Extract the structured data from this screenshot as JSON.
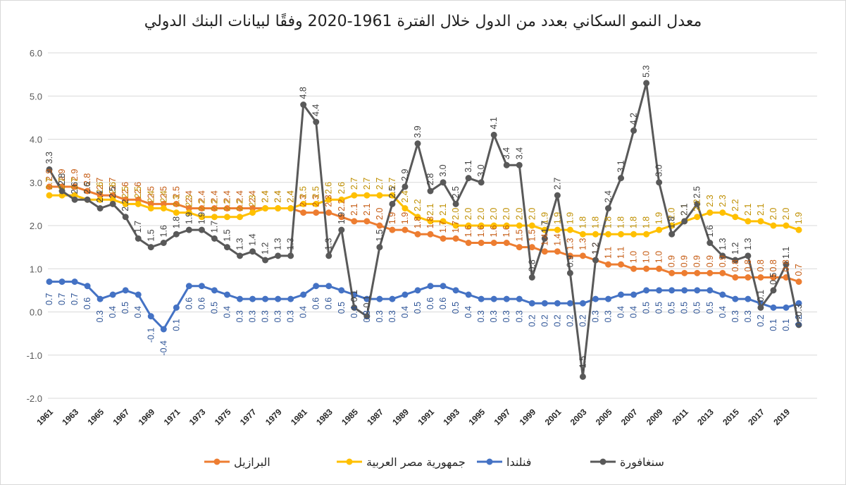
{
  "chart_data": {
    "type": "line",
    "title": "معدل النمو السكاني بعدد من الدول خلال الفترة 1961-2020 وفقًا لبيانات البنك الدولي",
    "xlabel": "",
    "ylabel": "",
    "ylim": [
      -2.0,
      6.0
    ],
    "y_ticks": [
      "-2.0",
      "-1.0",
      "0.0",
      "1.0",
      "2.0",
      "3.0",
      "4.0",
      "5.0",
      "6.0"
    ],
    "x": [
      1961,
      1962,
      1963,
      1964,
      1965,
      1966,
      1967,
      1968,
      1969,
      1970,
      1971,
      1972,
      1973,
      1974,
      1975,
      1976,
      1977,
      1978,
      1979,
      1980,
      1981,
      1982,
      1983,
      1984,
      1985,
      1986,
      1987,
      1988,
      1989,
      1990,
      1991,
      1992,
      1993,
      1994,
      1995,
      1996,
      1997,
      1998,
      1999,
      2000,
      2001,
      2002,
      2003,
      2004,
      2005,
      2006,
      2007,
      2008,
      2009,
      2010,
      2011,
      2012,
      2013,
      2014,
      2015,
      2016,
      2017,
      2018,
      2019,
      2020
    ],
    "x_tick_labels": [
      "1961",
      "1963",
      "1965",
      "1967",
      "1969",
      "1971",
      "1973",
      "1975",
      "1977",
      "1979",
      "1981",
      "1983",
      "1985",
      "1987",
      "1989",
      "1991",
      "1993",
      "1995",
      "1997",
      "1999",
      "2001",
      "2003",
      "2005",
      "2007",
      "2009",
      "2011",
      "2013",
      "2015",
      "2017",
      "2019"
    ],
    "grid": true,
    "legend_position": "bottom",
    "series": [
      {
        "name": "البرازيل",
        "color": "#ED7D31",
        "values": [
          2.9,
          2.9,
          2.9,
          2.8,
          2.7,
          2.7,
          2.6,
          2.6,
          2.5,
          2.5,
          2.5,
          2.4,
          2.4,
          2.4,
          2.4,
          2.4,
          2.4,
          2.4,
          2.4,
          2.4,
          2.3,
          2.3,
          2.3,
          2.2,
          2.1,
          2.1,
          2.0,
          1.9,
          1.9,
          1.8,
          1.8,
          1.7,
          1.7,
          1.6,
          1.6,
          1.6,
          1.6,
          1.5,
          1.5,
          1.4,
          1.4,
          1.3,
          1.3,
          1.2,
          1.1,
          1.1,
          1.0,
          1.0,
          1.0,
          0.9,
          0.9,
          0.9,
          0.9,
          0.9,
          0.8,
          0.8,
          0.8,
          0.8,
          0.8,
          0.7
        ]
      },
      {
        "name": "جمهورية مصر العربية",
        "color": "#FFC000",
        "values": [
          2.7,
          2.7,
          2.7,
          2.6,
          2.6,
          2.6,
          2.5,
          2.5,
          2.4,
          2.4,
          2.3,
          2.3,
          2.2,
          2.2,
          2.2,
          2.2,
          2.3,
          2.4,
          2.4,
          2.4,
          2.5,
          2.5,
          2.6,
          2.6,
          2.7,
          2.7,
          2.7,
          2.7,
          2.4,
          2.2,
          2.1,
          2.1,
          2.0,
          2.0,
          2.0,
          2.0,
          2.0,
          2.0,
          2.0,
          1.9,
          1.9,
          1.9,
          1.8,
          1.8,
          1.8,
          1.8,
          1.8,
          1.8,
          1.9,
          2.0,
          2.1,
          2.2,
          2.3,
          2.3,
          2.2,
          2.1,
          2.1,
          2.0,
          2.0,
          1.9
        ]
      },
      {
        "name": "فنلندا",
        "color": "#4472C4",
        "values": [
          0.7,
          0.7,
          0.7,
          0.6,
          0.3,
          0.4,
          0.5,
          0.4,
          -0.1,
          -0.4,
          0.1,
          0.6,
          0.6,
          0.5,
          0.4,
          0.3,
          0.3,
          0.3,
          0.3,
          0.3,
          0.4,
          0.6,
          0.6,
          0.5,
          0.4,
          0.3,
          0.3,
          0.3,
          0.4,
          0.5,
          0.6,
          0.6,
          0.5,
          0.4,
          0.3,
          0.3,
          0.3,
          0.3,
          0.2,
          0.2,
          0.2,
          0.2,
          0.2,
          0.3,
          0.3,
          0.4,
          0.4,
          0.5,
          0.5,
          0.5,
          0.5,
          0.5,
          0.5,
          0.4,
          0.3,
          0.3,
          0.2,
          0.1,
          0.1,
          0.2
        ]
      },
      {
        "name": "سنغافورة",
        "color": "#595959",
        "values": [
          3.3,
          2.8,
          2.6,
          2.6,
          2.4,
          2.5,
          2.2,
          1.7,
          1.5,
          1.6,
          1.8,
          1.9,
          1.9,
          1.7,
          1.5,
          1.3,
          1.4,
          1.2,
          1.3,
          1.3,
          4.8,
          4.4,
          1.3,
          1.9,
          0.1,
          -0.1,
          1.5,
          2.5,
          2.9,
          3.9,
          2.8,
          3.0,
          2.5,
          3.1,
          3.0,
          4.1,
          3.4,
          3.4,
          0.8,
          1.7,
          2.7,
          0.9,
          -1.5,
          1.2,
          2.4,
          3.1,
          4.2,
          5.3,
          3.0,
          1.8,
          2.1,
          2.5,
          1.6,
          1.3,
          1.2,
          1.3,
          0.1,
          0.5,
          1.1,
          -0.3
        ]
      }
    ]
  }
}
